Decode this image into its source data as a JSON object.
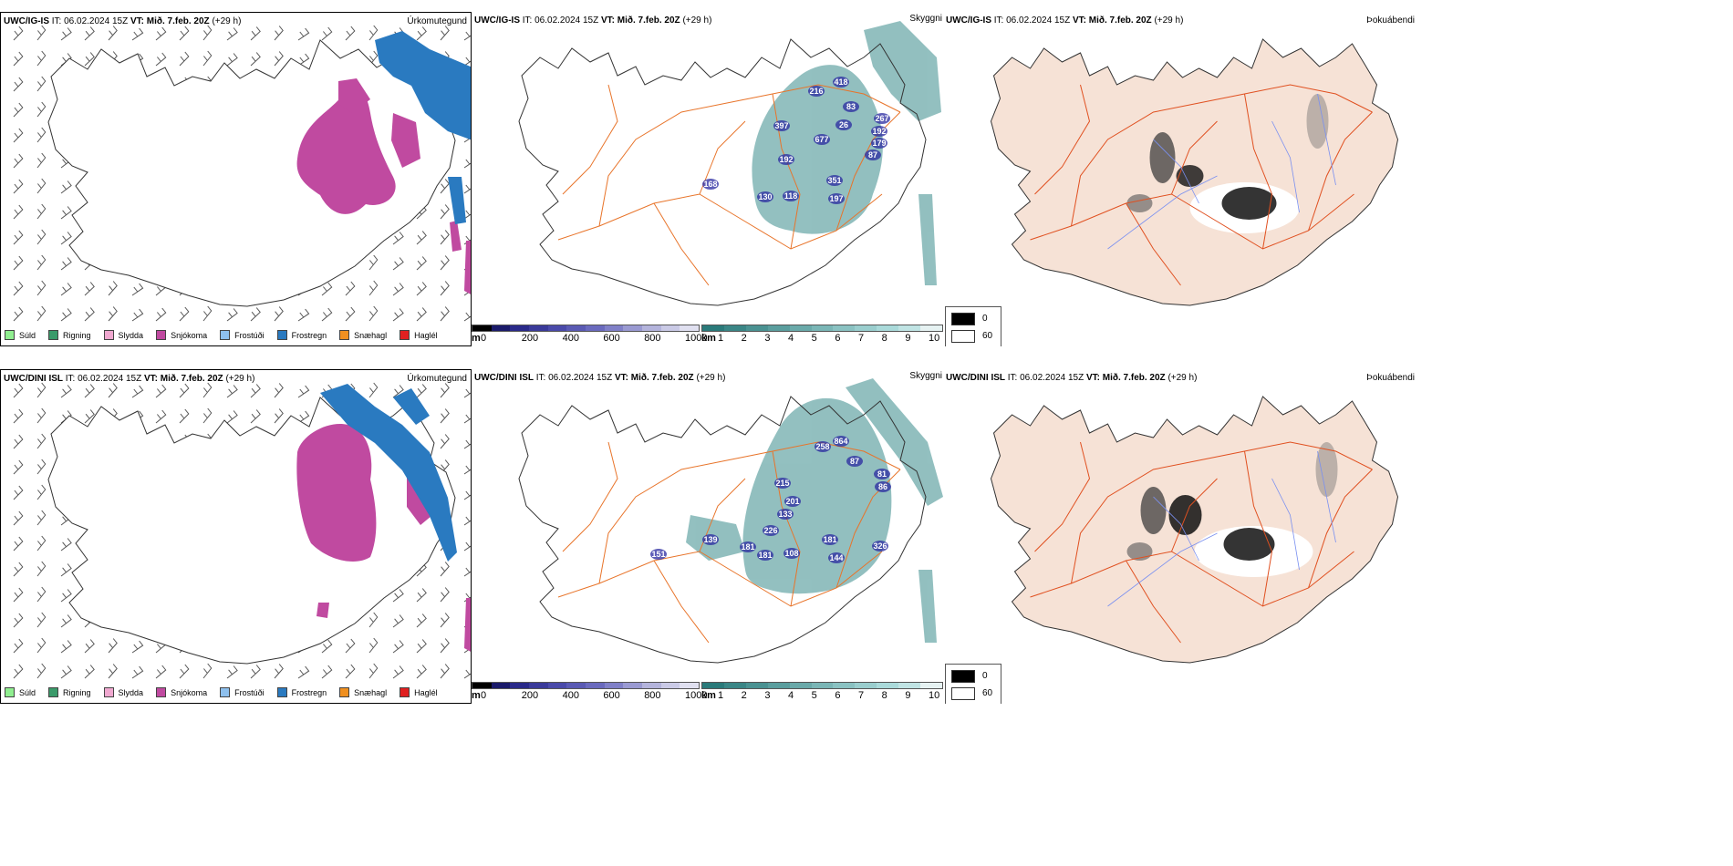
{
  "rows": [
    {
      "model": "UWC/IG-IS",
      "it_label": "IT:",
      "it_value": "06.02.2024 15Z",
      "vt_label": "VT:",
      "vt_value": "Mið. 7.feb. 20Z",
      "lead": "(+29 h)",
      "precip_title": "Úrkomutegund",
      "cloud_title": "Skyggni",
      "fog_title": "Þokuábendi",
      "visibility_values": [
        "216",
        "418",
        "397",
        "677",
        "83",
        "26",
        "267",
        "192",
        "179",
        "87",
        "192",
        "168",
        "351",
        "130",
        "118",
        "197"
      ]
    },
    {
      "model": "UWC/DINI ISL",
      "it_label": "IT:",
      "it_value": "06.02.2024 15Z",
      "vt_label": "VT:",
      "vt_value": "Mið. 7.feb. 20Z",
      "lead": "(+29 h)",
      "precip_title": "Úrkomutegund",
      "cloud_title": "Skyggni",
      "fog_title": "Þokuábendi",
      "visibility_values": [
        "258",
        "864",
        "87",
        "81",
        "215",
        "86",
        "201",
        "133",
        "226",
        "151",
        "139",
        "181",
        "181",
        "108",
        "181",
        "326",
        "144"
      ]
    }
  ],
  "precip_legend": [
    {
      "label": "Súld",
      "color": "#90ee90"
    },
    {
      "label": "Rigning",
      "color": "#3a9a6a"
    },
    {
      "label": "Slydda",
      "color": "#f0a8d0"
    },
    {
      "label": "Snjókoma",
      "color": "#c04aa0"
    },
    {
      "label": "Frostúði",
      "color": "#8ec0ee"
    },
    {
      "label": "Frostregn",
      "color": "#2a7ac0"
    },
    {
      "label": "Snæhagl",
      "color": "#f09020"
    },
    {
      "label": "Haglél",
      "color": "#e02020"
    }
  ],
  "ceiling_bar": {
    "unit": "m",
    "ticks": [
      "0",
      "200",
      "400",
      "600",
      "800",
      "1000"
    ],
    "colors": [
      "#000000",
      "#1a1a6a",
      "#2a2a8a",
      "#3a3a9a",
      "#4a4aaa",
      "#5a5ab4",
      "#6a6abe",
      "#8080c8",
      "#9a9ad2",
      "#b4b4dc",
      "#cacae6",
      "#e0e0f0"
    ]
  },
  "visibility_bar": {
    "unit": "km",
    "ticks": [
      "1",
      "2",
      "3",
      "4",
      "5",
      "6",
      "7",
      "8",
      "9",
      "10"
    ],
    "colors": [
      "#2a7a7a",
      "#3a8686",
      "#4a9292",
      "#5a9e9e",
      "#6aaaaa",
      "#7ab6b6",
      "#8ac2c2",
      "#9acece",
      "#aadada",
      "#c0e4e4",
      "#e6f2f2"
    ]
  },
  "fog_legend": {
    "dark_label": "0",
    "light_label": "60",
    "dark_color": "#000000",
    "light_color": "#ffffff"
  },
  "colors": {
    "land": "#f6e2d6",
    "roads": "#e8742a",
    "rivers": "#7a90f0",
    "snow": "#c04aa0",
    "frz_rain": "#2a7ac0",
    "cloud": "#3a8c8c",
    "low_cloud": "#2a2aa0"
  }
}
